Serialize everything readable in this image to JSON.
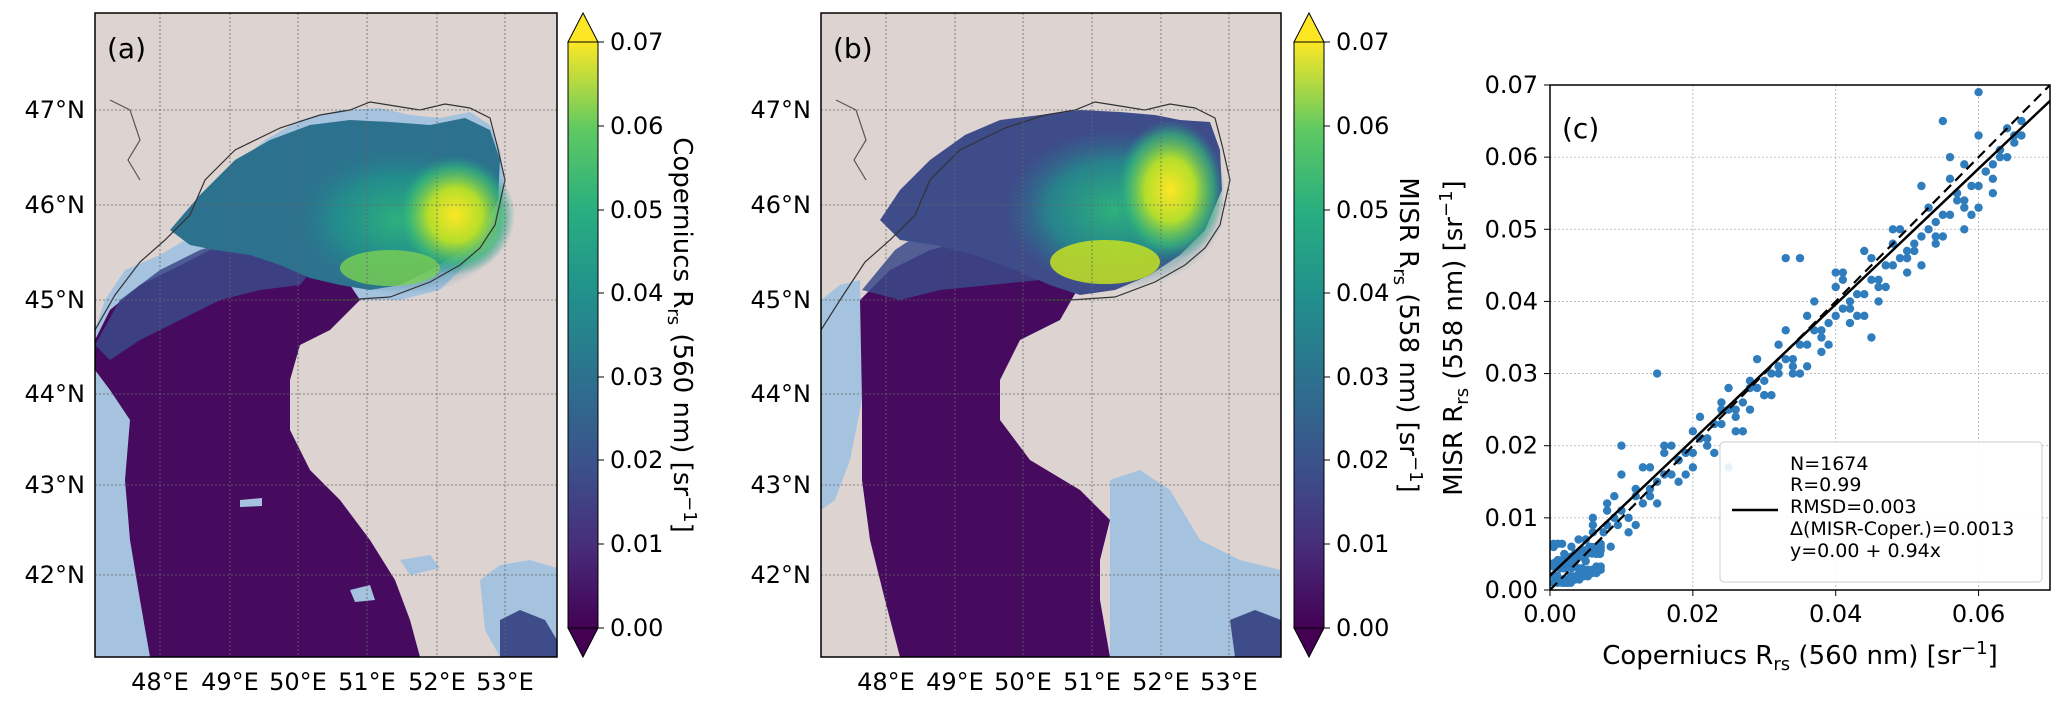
{
  "panels": {
    "a": {
      "label": "(a)",
      "lat_ticks": [
        "47°N",
        "46°N",
        "45°N",
        "44°N",
        "43°N",
        "42°N"
      ],
      "lon_ticks": [
        "48°E",
        "49°E",
        "50°E",
        "51°E",
        "52°E",
        "53°E"
      ],
      "colorbar": {
        "label_main": "Coperniucs R",
        "label_sub": "rs",
        "label_rest": " (560 nm) [sr",
        "label_exp": "−1",
        "label_end": "]",
        "ticks": [
          "0.00",
          "0.01",
          "0.02",
          "0.03",
          "0.04",
          "0.05",
          "0.06",
          "0.07"
        ]
      }
    },
    "b": {
      "label": "(b)",
      "lat_ticks": [
        "47°N",
        "46°N",
        "45°N",
        "44°N",
        "43°N",
        "42°N"
      ],
      "lon_ticks": [
        "48°E",
        "49°E",
        "50°E",
        "51°E",
        "52°E",
        "53°E"
      ],
      "colorbar": {
        "label_main": "MISR R",
        "label_sub": "rs",
        "label_rest": " (558 nm) [sr",
        "label_exp": "−1",
        "label_end": "]",
        "ticks": [
          "0.00",
          "0.01",
          "0.02",
          "0.03",
          "0.04",
          "0.05",
          "0.06",
          "0.07"
        ]
      }
    },
    "c": {
      "label": "(c)",
      "legend_lines": [
        "N=1674",
        "R=0.99",
        "RMSD=0.003",
        "Δ(MISR-Coper.)=0.0013",
        "y=0.00 + 0.94x"
      ]
    }
  },
  "colors": {
    "land": "#ddd4d2",
    "water_shallow": "#a5c3de",
    "point": "#2f7dbd",
    "viridis_low": "#440154",
    "viridis_high": "#fde725"
  },
  "chart_data": [
    {
      "type": "heatmap",
      "title": "(a)",
      "colorbar_label": "Coperniucs Rrs (560 nm) [sr−1]",
      "vmin": 0.0,
      "vmax": 0.07,
      "colorbar_ticks": [
        0.0,
        0.01,
        0.02,
        0.03,
        0.04,
        0.05,
        0.06,
        0.07
      ],
      "lat_ticks": [
        47,
        46,
        45,
        44,
        43,
        42
      ],
      "lon_ticks": [
        48,
        49,
        50,
        51,
        52,
        53
      ],
      "lat_range": [
        41.1,
        48.0
      ],
      "lon_range": [
        46.5,
        54.3
      ],
      "colormap": "viridis",
      "region_values": {
        "north_east_shelf": 0.06,
        "north_central": 0.035,
        "middle": 0.01,
        "south": 0.003
      }
    },
    {
      "type": "heatmap",
      "title": "(b)",
      "colorbar_label": "MISR Rrs (558 nm) [sr−1]",
      "vmin": 0.0,
      "vmax": 0.07,
      "colorbar_ticks": [
        0.0,
        0.01,
        0.02,
        0.03,
        0.04,
        0.05,
        0.06,
        0.07
      ],
      "lat_ticks": [
        47,
        46,
        45,
        44,
        43,
        42
      ],
      "lon_ticks": [
        48,
        49,
        50,
        51,
        52,
        53
      ],
      "lat_range": [
        41.1,
        48.0
      ],
      "lon_range": [
        46.5,
        54.3
      ],
      "colormap": "viridis",
      "region_values": {
        "north_east_shelf": 0.065,
        "north_central": 0.03,
        "middle": 0.008,
        "south": 0.003
      }
    },
    {
      "type": "scatter",
      "title": "(c)",
      "xlabel": "Coperniucs Rrs (560 nm) [sr−1]",
      "ylabel": "MISR Rrs (558 nm) [sr−1]",
      "xlim": [
        0.0,
        0.07
      ],
      "ylim": [
        0.0,
        0.07
      ],
      "xticks": [
        0.0,
        0.02,
        0.04,
        0.06
      ],
      "yticks": [
        0.0,
        0.01,
        0.02,
        0.03,
        0.04,
        0.05,
        0.06,
        0.07
      ],
      "grid": true,
      "n_points": 1674,
      "fit": {
        "intercept": 0.0,
        "slope": 0.94
      },
      "one_to_one": true,
      "stats": {
        "N": 1674,
        "R": 0.99,
        "RMSD": 0.003,
        "bias": 0.0013
      },
      "legend_position": "lower-right",
      "x": [
        0.001,
        0.002,
        0.003,
        0.004,
        0.005,
        0.006,
        0.007,
        0.008,
        0.009,
        0.01,
        0.011,
        0.012,
        0.013,
        0.014,
        0.015,
        0.016,
        0.017,
        0.018,
        0.019,
        0.02,
        0.021,
        0.022,
        0.023,
        0.024,
        0.025,
        0.026,
        0.027,
        0.028,
        0.029,
        0.03,
        0.031,
        0.032,
        0.033,
        0.034,
        0.035,
        0.036,
        0.037,
        0.038,
        0.039,
        0.04,
        0.041,
        0.042,
        0.043,
        0.044,
        0.045,
        0.046,
        0.047,
        0.048,
        0.049,
        0.05,
        0.051,
        0.052,
        0.053,
        0.054,
        0.055,
        0.056,
        0.057,
        0.058,
        0.059,
        0.06,
        0.061,
        0.062,
        0.063,
        0.064,
        0.065,
        0.066,
        0.001,
        0.002,
        0.003,
        0.004,
        0.005,
        0.006,
        0.008,
        0.01,
        0.012,
        0.014,
        0.016,
        0.018,
        0.02,
        0.022,
        0.024,
        0.026,
        0.028,
        0.03,
        0.032,
        0.034,
        0.036,
        0.038,
        0.04,
        0.042,
        0.044,
        0.046,
        0.048,
        0.05,
        0.052,
        0.054,
        0.056,
        0.058,
        0.06,
        0.062,
        0.064,
        0.003,
        0.007,
        0.009,
        0.011,
        0.013,
        0.015,
        0.017,
        0.019,
        0.021,
        0.023,
        0.025,
        0.027,
        0.029,
        0.031,
        0.033,
        0.035,
        0.037,
        0.039,
        0.041,
        0.043,
        0.045,
        0.047,
        0.049,
        0.051,
        0.053,
        0.055,
        0.057,
        0.059,
        0.061,
        0.063,
        0.065,
        0.002,
        0.004,
        0.006,
        0.008,
        0.012,
        0.016,
        0.02,
        0.024,
        0.028,
        0.032,
        0.036,
        0.04,
        0.044,
        0.048,
        0.052,
        0.056,
        0.06,
        0.0005,
        0.0015,
        0.0025,
        0.0035,
        0.0045,
        0.0055,
        0.0065,
        0.0075,
        0.0085,
        0.0095,
        0.014,
        0.018,
        0.022,
        0.026,
        0.03,
        0.034,
        0.038,
        0.042,
        0.046,
        0.05,
        0.054,
        0.058,
        0.062,
        0.066,
        0.06,
        0.055,
        0.045,
        0.035,
        0.025,
        0.015,
        0.01,
        0.058,
        0.041,
        0.033
      ],
      "y": [
        0.004,
        0.003,
        0.006,
        0.005,
        0.007,
        0.008,
        0.006,
        0.009,
        0.01,
        0.011,
        0.01,
        0.013,
        0.012,
        0.014,
        0.015,
        0.016,
        0.016,
        0.018,
        0.019,
        0.019,
        0.021,
        0.021,
        0.023,
        0.023,
        0.025,
        0.025,
        0.026,
        0.028,
        0.028,
        0.029,
        0.03,
        0.031,
        0.032,
        0.032,
        0.034,
        0.034,
        0.036,
        0.036,
        0.037,
        0.038,
        0.039,
        0.04,
        0.041,
        0.041,
        0.043,
        0.043,
        0.045,
        0.045,
        0.046,
        0.047,
        0.048,
        0.049,
        0.05,
        0.051,
        0.052,
        0.052,
        0.054,
        0.054,
        0.056,
        0.056,
        0.058,
        0.059,
        0.06,
        0.06,
        0.062,
        0.063,
        0.002,
        0.005,
        0.004,
        0.007,
        0.004,
        0.01,
        0.012,
        0.016,
        0.014,
        0.017,
        0.019,
        0.015,
        0.022,
        0.02,
        0.026,
        0.022,
        0.029,
        0.027,
        0.034,
        0.03,
        0.038,
        0.033,
        0.042,
        0.037,
        0.047,
        0.04,
        0.05,
        0.044,
        0.056,
        0.048,
        0.06,
        0.05,
        0.063,
        0.055,
        0.064,
        0.003,
        0.005,
        0.013,
        0.008,
        0.017,
        0.012,
        0.02,
        0.016,
        0.024,
        0.019,
        0.028,
        0.022,
        0.032,
        0.027,
        0.036,
        0.03,
        0.04,
        0.034,
        0.043,
        0.038,
        0.046,
        0.042,
        0.05,
        0.047,
        0.053,
        0.049,
        0.055,
        0.052,
        0.058,
        0.061,
        0.063,
        0.001,
        0.003,
        0.009,
        0.011,
        0.009,
        0.02,
        0.017,
        0.025,
        0.025,
        0.03,
        0.031,
        0.044,
        0.038,
        0.048,
        0.045,
        0.057,
        0.053,
        0.002,
        0.003,
        0.001,
        0.004,
        0.003,
        0.006,
        0.005,
        0.008,
        0.006,
        0.009,
        0.013,
        0.018,
        0.021,
        0.024,
        0.027,
        0.031,
        0.035,
        0.039,
        0.042,
        0.046,
        0.049,
        0.053,
        0.057,
        0.065,
        0.069,
        0.065,
        0.035,
        0.046,
        0.017,
        0.03,
        0.02,
        0.059,
        0.044,
        0.046
      ]
    }
  ]
}
